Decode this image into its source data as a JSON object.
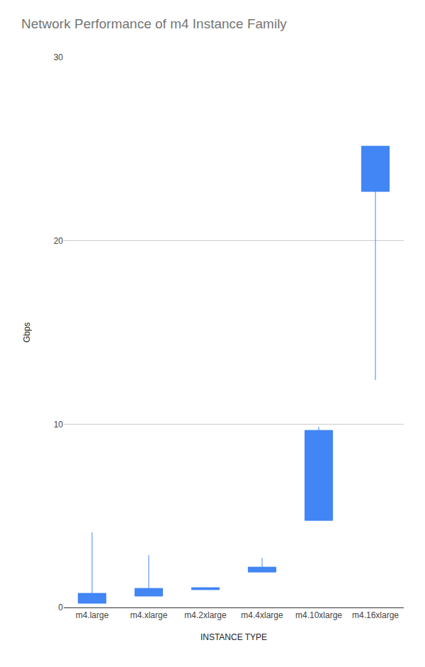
{
  "chart_data": {
    "type": "candlestick",
    "title": "Network Performance of m4 Instance Family",
    "x_label": "INSTANCE TYPE",
    "y_label": "Gbps",
    "categories": [
      "m4.large",
      "m4.xlarge",
      "m4.2xlarge",
      "m4.4xlarge",
      "m4.10xlarge",
      "m4.16xlarge"
    ],
    "low": [
      0.23,
      0.62,
      0.97,
      1.93,
      4.75,
      12.4
    ],
    "open": [
      0.23,
      0.62,
      0.97,
      1.93,
      4.75,
      22.69
    ],
    "close": [
      0.77,
      1.04,
      1.08,
      2.2,
      9.66,
      25.16
    ],
    "high": [
      4.1,
      2.86,
      1.1,
      2.7,
      9.85,
      25.16
    ],
    "color": "#4285f4",
    "ylim": [
      0,
      30
    ],
    "yticks": [
      0,
      10,
      20,
      30
    ],
    "grid": true
  }
}
